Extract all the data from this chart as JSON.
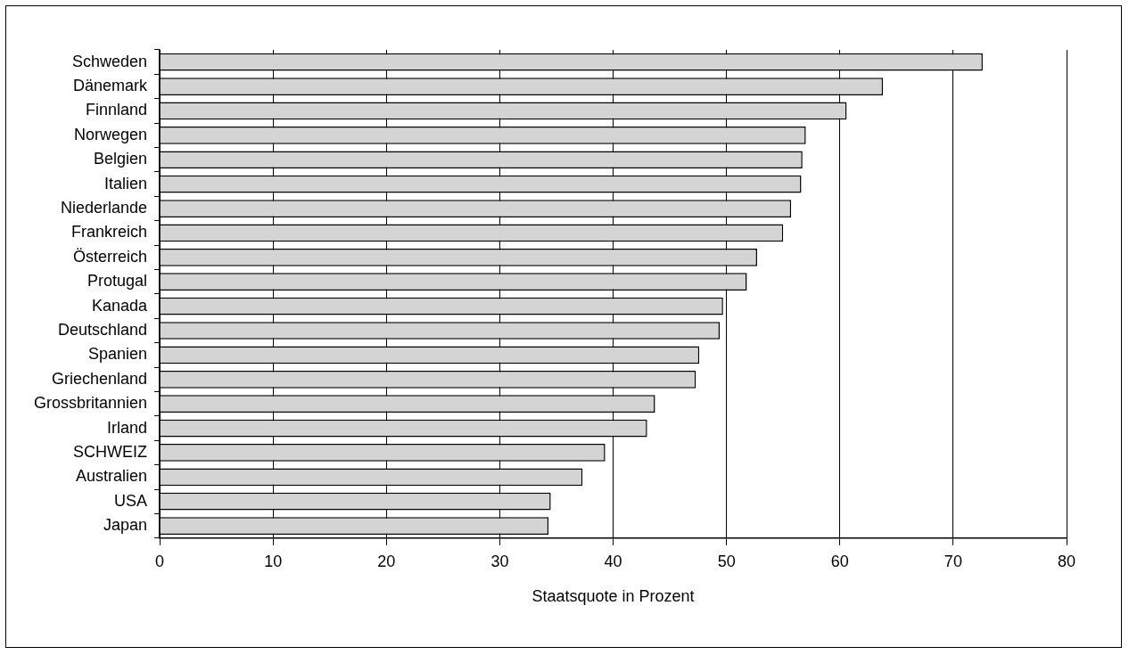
{
  "chart_data": {
    "type": "bar",
    "orientation": "horizontal",
    "categories": [
      "Schweden",
      "Dänemark",
      "Finnland",
      "Norwegen",
      "Belgien",
      "Italien",
      "Niederlande",
      "Frankreich",
      "Österreich",
      "Protugal",
      "Kanada",
      "Deutschland",
      "Spanien",
      "Griechenland",
      "Grossbritannien",
      "Irland",
      "SCHWEIZ",
      "Australien",
      "USA",
      "Japan"
    ],
    "values": [
      72.6,
      63.8,
      60.6,
      57.0,
      56.7,
      56.6,
      55.7,
      55.0,
      52.7,
      51.8,
      49.7,
      49.4,
      47.6,
      47.3,
      43.7,
      43.0,
      39.3,
      37.3,
      34.5,
      34.3
    ],
    "color": "#d4d4d4",
    "xlabel": "Staatsquote in Prozent",
    "xlim": [
      0,
      80
    ],
    "xticks": [
      0,
      10,
      20,
      30,
      40,
      50,
      60,
      70,
      80
    ],
    "grid": "x",
    "legend": false
  }
}
